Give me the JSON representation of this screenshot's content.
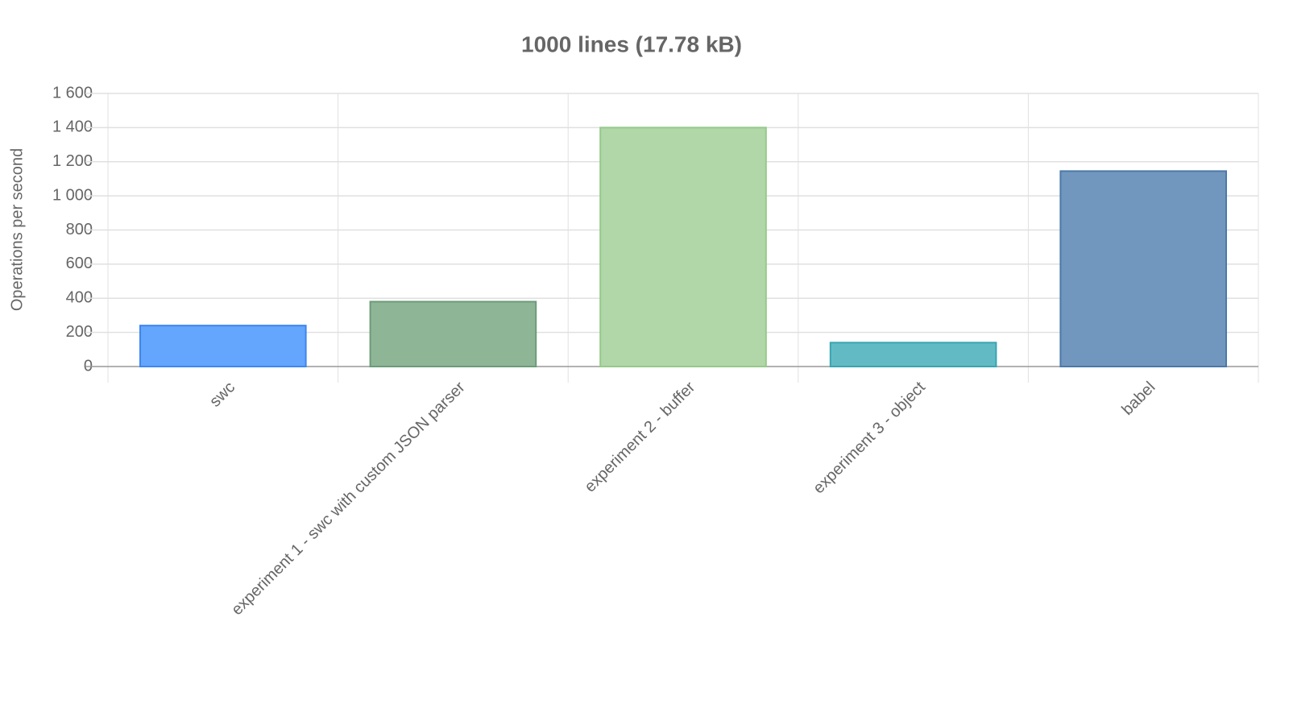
{
  "chart_data": {
    "type": "bar",
    "title": "1000 lines (17.78 kB)",
    "y_label": "Operations per second",
    "categories": [
      "swc",
      "experiment 1 - swc with custom JSON parser",
      "experiment 2 - buffer",
      "experiment 3 - object",
      "babel"
    ],
    "values": [
      240,
      380,
      1400,
      140,
      1145
    ],
    "colors": [
      "#64a5fd",
      "#8fb597",
      "#b1d6a8",
      "#62bbc4",
      "#7197be"
    ],
    "border_colors": [
      "#3d86f0",
      "#6b9c78",
      "#95c98a",
      "#3aa5b0",
      "#4c79a8"
    ],
    "ylim": [
      0,
      1600
    ],
    "yticks": [
      0,
      200,
      400,
      600,
      800,
      {
        "value": 1000,
        "label": "1 000"
      },
      {
        "value": 1200,
        "label": "1 200"
      },
      {
        "value": 1400,
        "label": "1 400"
      },
      {
        "value": 1600,
        "label": "1 600"
      }
    ],
    "grid": true
  }
}
